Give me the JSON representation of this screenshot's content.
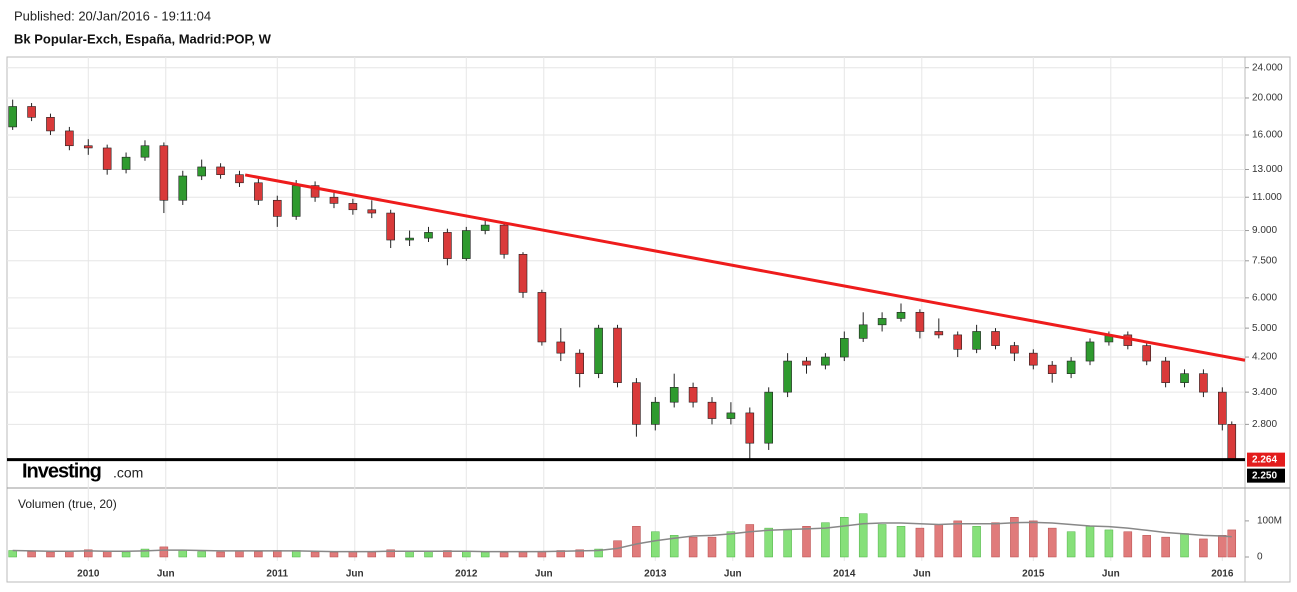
{
  "chart_data": {
    "type": "candlestick",
    "published": "Published: 20/Jan/2016 - 19:11:04",
    "title": "Bk Popular-Exch, España, Madrid:POP, W",
    "watermark": {
      "main": "Investing",
      "suffix": ".com"
    },
    "log_scale": true,
    "grid": true,
    "colors": {
      "up": "#2f9a2f",
      "down": "#d93a3a",
      "volume_up": "#86e07a",
      "volume_down": "#e07b7b",
      "volume_ma": "#888888"
    },
    "x": [
      2009.6,
      2009.7,
      2009.8,
      2009.9,
      2010.0,
      2010.1,
      2010.2,
      2010.3,
      2010.4,
      2010.5,
      2010.6,
      2010.7,
      2010.8,
      2010.9,
      2011.0,
      2011.1,
      2011.2,
      2011.3,
      2011.4,
      2011.5,
      2011.6,
      2011.7,
      2011.8,
      2011.9,
      2012.0,
      2012.1,
      2012.2,
      2012.3,
      2012.4,
      2012.5,
      2012.6,
      2012.7,
      2012.8,
      2012.9,
      2013.0,
      2013.1,
      2013.2,
      2013.3,
      2013.4,
      2013.5,
      2013.6,
      2013.7,
      2013.8,
      2013.9,
      2014.0,
      2014.1,
      2014.2,
      2014.3,
      2014.4,
      2014.5,
      2014.6,
      2014.7,
      2014.8,
      2014.9,
      2015.0,
      2015.1,
      2015.2,
      2015.3,
      2015.4,
      2015.5,
      2015.6,
      2015.7,
      2015.8,
      2015.9,
      2016.0,
      2016.05
    ],
    "open": [
      16.8,
      19.0,
      17.8,
      16.4,
      15.0,
      14.8,
      13.0,
      14.0,
      15.0,
      10.8,
      12.5,
      13.2,
      12.6,
      12.0,
      10.8,
      9.8,
      11.8,
      11.0,
      10.6,
      10.2,
      10.0,
      8.5,
      8.6,
      8.9,
      7.6,
      9.0,
      9.3,
      7.8,
      6.2,
      4.6,
      4.3,
      3.8,
      5.0,
      3.6,
      2.8,
      3.2,
      3.5,
      3.2,
      2.9,
      3.0,
      2.5,
      3.4,
      4.1,
      4.0,
      4.2,
      4.7,
      5.1,
      5.3,
      5.5,
      4.9,
      4.8,
      4.4,
      4.9,
      4.5,
      4.3,
      4.0,
      3.8,
      4.1,
      4.6,
      4.8,
      4.5,
      4.1,
      3.6,
      3.8,
      3.4,
      2.8
    ],
    "high": [
      19.8,
      19.4,
      18.2,
      16.8,
      15.6,
      15.1,
      14.4,
      15.5,
      15.3,
      12.9,
      13.8,
      13.5,
      12.9,
      12.3,
      11.1,
      12.2,
      12.1,
      11.3,
      10.9,
      10.8,
      10.2,
      9.0,
      9.2,
      9.1,
      9.2,
      9.6,
      9.4,
      7.9,
      6.3,
      5.0,
      4.4,
      5.1,
      5.1,
      3.7,
      3.3,
      3.8,
      3.6,
      3.3,
      3.2,
      3.1,
      3.5,
      4.3,
      4.2,
      4.3,
      4.9,
      5.5,
      5.5,
      5.8,
      5.6,
      5.3,
      4.9,
      5.1,
      5.0,
      4.6,
      4.4,
      4.1,
      4.2,
      4.7,
      4.9,
      4.9,
      4.6,
      4.2,
      3.9,
      3.9,
      3.5,
      2.85
    ],
    "low": [
      16.5,
      17.4,
      16.0,
      14.6,
      14.2,
      12.6,
      12.7,
      13.7,
      10.0,
      10.5,
      12.2,
      12.3,
      11.7,
      10.5,
      9.2,
      9.6,
      10.7,
      10.3,
      9.9,
      9.7,
      8.1,
      8.2,
      8.4,
      7.3,
      7.5,
      8.8,
      7.6,
      6.0,
      4.5,
      4.1,
      3.5,
      3.7,
      3.5,
      2.6,
      2.7,
      3.1,
      3.1,
      2.8,
      2.8,
      2.25,
      2.4,
      3.3,
      3.8,
      3.9,
      4.1,
      4.6,
      4.9,
      5.2,
      4.7,
      4.7,
      4.2,
      4.3,
      4.4,
      4.1,
      3.9,
      3.6,
      3.7,
      4.0,
      4.5,
      4.4,
      4.0,
      3.5,
      3.5,
      3.3,
      2.7,
      2.25
    ],
    "close": [
      19.0,
      17.8,
      16.4,
      15.0,
      14.8,
      13.0,
      14.0,
      15.0,
      10.8,
      12.5,
      13.2,
      12.6,
      12.0,
      10.8,
      9.8,
      11.8,
      11.0,
      10.6,
      10.2,
      10.0,
      8.5,
      8.6,
      8.9,
      7.6,
      9.0,
      9.3,
      7.8,
      6.2,
      4.6,
      4.3,
      3.8,
      5.0,
      3.6,
      2.8,
      3.2,
      3.5,
      3.2,
      2.9,
      3.0,
      2.5,
      3.4,
      4.1,
      4.0,
      4.2,
      4.7,
      5.1,
      5.3,
      5.5,
      4.9,
      4.8,
      4.4,
      4.9,
      4.5,
      4.3,
      4.0,
      3.8,
      4.1,
      4.6,
      4.8,
      4.5,
      4.1,
      3.6,
      3.8,
      3.4,
      2.8,
      2.264
    ],
    "xlim": [
      2009.57,
      2016.12
    ],
    "ylim": [
      1.92,
      25.6
    ],
    "xticks": [
      2010,
      {
        "value": 2010.41,
        "label": "Jun"
      },
      2011,
      {
        "value": 2011.41,
        "label": "Jun"
      },
      2012,
      {
        "value": 2012.41,
        "label": "Jun"
      },
      2013,
      {
        "value": 2013.41,
        "label": "Jun"
      },
      2014,
      {
        "value": 2014.41,
        "label": "Jun"
      },
      2015,
      {
        "value": 2015.41,
        "label": "Jun"
      },
      2016
    ],
    "yticks": [
      {
        "value": 2.8,
        "label": "2.800"
      },
      {
        "value": 3.4,
        "label": "3.400"
      },
      {
        "value": 4.2,
        "label": "4.200"
      },
      {
        "value": 5,
        "label": "5.000"
      },
      {
        "value": 6,
        "label": "6.000"
      },
      {
        "value": 7.5,
        "label": "7.500"
      },
      {
        "value": 9,
        "label": "9.000"
      },
      {
        "value": 11,
        "label": "11.000"
      },
      {
        "value": 13,
        "label": "13.000"
      },
      {
        "value": 16,
        "label": "16.000"
      },
      {
        "value": 20,
        "label": "20.000"
      },
      {
        "value": 24,
        "label": "24.000"
      }
    ],
    "trendline": {
      "x": [
        2010.83,
        2016.12
      ],
      "y": [
        12.58,
        4.12
      ],
      "color": "#ee1c1c"
    },
    "last_price": {
      "value": 2.264,
      "color": "#e31c1c"
    },
    "low_label": {
      "value": 2.25,
      "label": "2.250"
    },
    "volume_panel": {
      "label": "Volumen (true, 20)",
      "ylim": [
        0,
        180
      ],
      "yticks": [
        0,
        {
          "value": 100,
          "label": "100M"
        }
      ],
      "values": [
        18,
        15,
        14,
        16,
        20,
        15,
        14,
        22,
        28,
        20,
        15,
        14,
        16,
        15,
        18,
        18,
        14,
        13,
        15,
        14,
        20,
        17,
        15,
        18,
        16,
        14,
        12,
        14,
        16,
        18,
        20,
        22,
        45,
        85,
        70,
        60,
        55,
        55,
        70,
        90,
        80,
        75,
        85,
        95,
        110,
        120,
        90,
        85,
        80,
        90,
        100,
        85,
        95,
        110,
        100,
        80,
        70,
        85,
        75,
        70,
        60,
        55,
        65,
        50,
        60,
        75
      ],
      "ma": [
        18,
        17,
        16,
        16,
        17,
        16,
        16,
        17,
        19,
        19,
        18,
        17,
        17,
        17,
        17,
        17,
        16,
        15,
        15,
        15,
        16,
        16,
        16,
        16,
        16,
        15,
        15,
        15,
        15,
        16,
        17,
        18,
        24,
        36,
        45,
        52,
        58,
        60,
        64,
        70,
        74,
        76,
        78,
        80,
        86,
        92,
        94,
        94,
        92,
        90,
        92,
        92,
        92,
        95,
        96,
        94,
        90,
        86,
        84,
        80,
        74,
        68,
        64,
        60,
        58,
        56
      ]
    }
  }
}
